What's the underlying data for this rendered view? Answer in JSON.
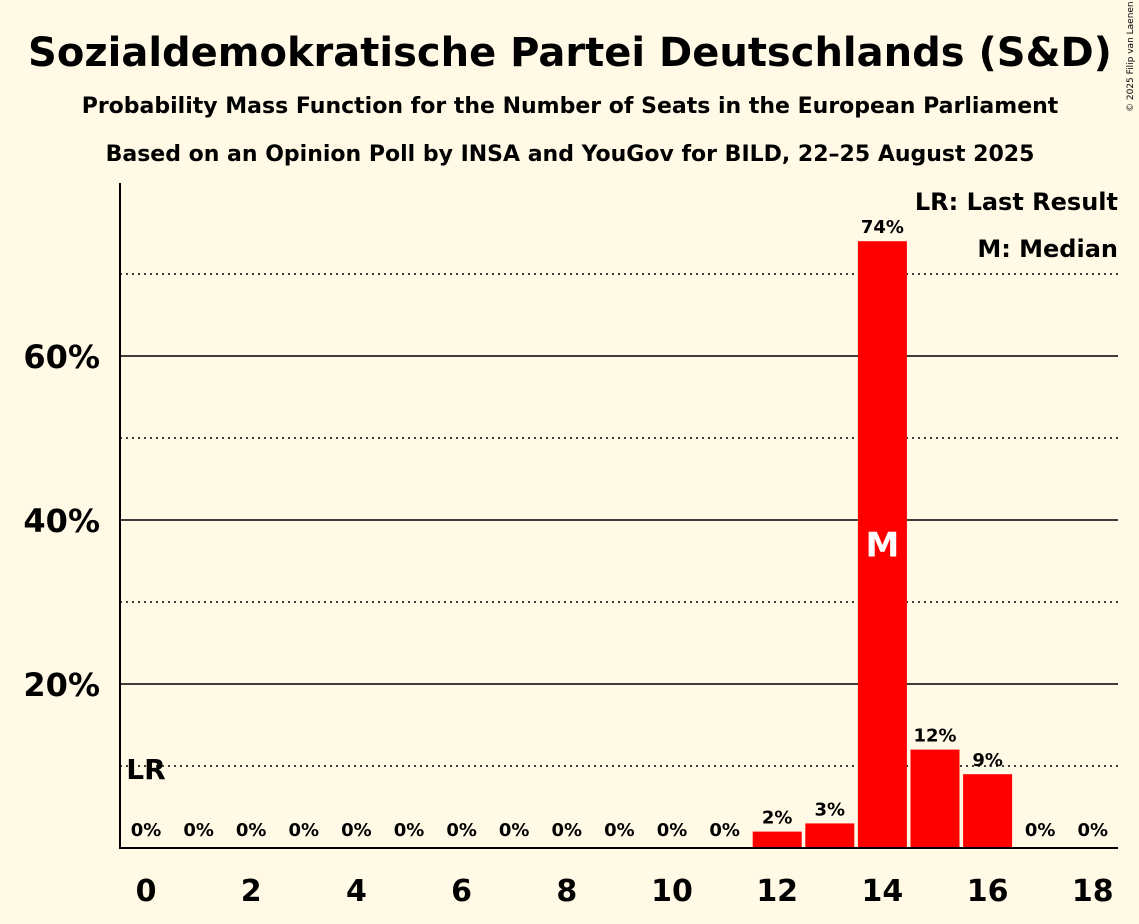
{
  "chart_data": {
    "type": "bar",
    "title": "Sozialdemokratische Partei Deutschlands (S&D)",
    "subtitle": "Probability Mass Function for the Number of Seats in the European Parliament",
    "subtitle2": "Based on an Opinion Poll by INSA and YouGov for BILD, 22–25 August 2025",
    "copyright": "© 2025 Filip van Laenen",
    "x": [
      0,
      1,
      2,
      3,
      4,
      5,
      6,
      7,
      8,
      9,
      10,
      11,
      12,
      13,
      14,
      15,
      16,
      17,
      18
    ],
    "values": [
      0,
      0,
      0,
      0,
      0,
      0,
      0,
      0,
      0,
      0,
      0,
      0,
      2,
      3,
      74,
      12,
      9,
      0,
      0
    ],
    "value_labels": [
      "0%",
      "0%",
      "0%",
      "0%",
      "0%",
      "0%",
      "0%",
      "0%",
      "0%",
      "0%",
      "0%",
      "0%",
      "2%",
      "3%",
      "74%",
      "12%",
      "9%",
      "0%",
      "0%"
    ],
    "x_tick_labels": [
      "0",
      "2",
      "4",
      "6",
      "8",
      "10",
      "12",
      "14",
      "16",
      "18"
    ],
    "y_tick_labels": [
      "20%",
      "40%",
      "60%"
    ],
    "ylim": [
      0,
      81
    ],
    "solid_grid": [
      20,
      40,
      60
    ],
    "dotted_grid": [
      10,
      30,
      50,
      70
    ],
    "bar_color": "#FF0000",
    "last_result": {
      "seat": 0,
      "value": 10,
      "label": "LR"
    },
    "median": {
      "seat": 14,
      "label": "M"
    },
    "legend": [
      "LR: Last Result",
      "M: Median"
    ],
    "legend_position": "top-right"
  }
}
